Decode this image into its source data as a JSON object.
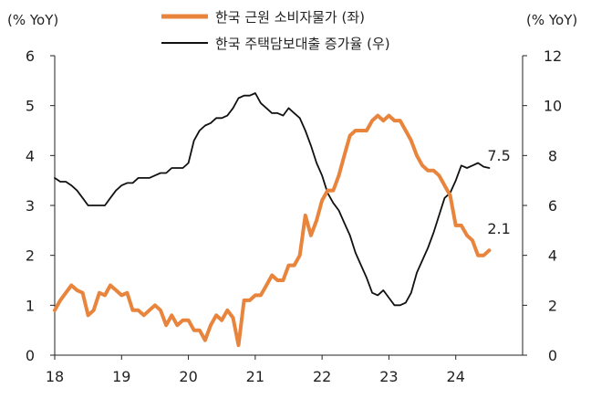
{
  "chart_data": {
    "type": "line",
    "left_unit": "(% YoY)",
    "right_unit": "(% YoY)",
    "left_ylim": [
      0,
      6
    ],
    "left_ticks": [
      "0",
      "1",
      "2",
      "3",
      "4",
      "5",
      "6"
    ],
    "right_ylim": [
      0,
      12
    ],
    "right_ticks": [
      "0",
      "2",
      "4",
      "6",
      "8",
      "10",
      "12"
    ],
    "xlim": [
      2018.0,
      2025.0
    ],
    "x_ticks": [
      {
        "value": 2018,
        "label": "18"
      },
      {
        "value": 2019,
        "label": "19"
      },
      {
        "value": 2020,
        "label": "20"
      },
      {
        "value": 2021,
        "label": "21"
      },
      {
        "value": 2022,
        "label": "22"
      },
      {
        "value": 2023,
        "label": "23"
      },
      {
        "value": 2024,
        "label": "24"
      }
    ],
    "grid": false,
    "legend_position": "top-center",
    "series": [
      {
        "name": "한국 근원 소비자물가 (좌)",
        "axis": "left",
        "color": "#E8843C",
        "end_label": "2.1",
        "points": [
          [
            2018.0,
            0.9
          ],
          [
            2018.083,
            1.1
          ],
          [
            2018.167,
            1.25
          ],
          [
            2018.25,
            1.4
          ],
          [
            2018.333,
            1.3
          ],
          [
            2018.417,
            1.25
          ],
          [
            2018.5,
            0.8
          ],
          [
            2018.583,
            0.9
          ],
          [
            2018.667,
            1.25
          ],
          [
            2018.75,
            1.2
          ],
          [
            2018.833,
            1.4
          ],
          [
            2018.917,
            1.3
          ],
          [
            2019.0,
            1.2
          ],
          [
            2019.083,
            1.25
          ],
          [
            2019.167,
            0.9
          ],
          [
            2019.25,
            0.9
          ],
          [
            2019.333,
            0.8
          ],
          [
            2019.417,
            0.9
          ],
          [
            2019.5,
            1.0
          ],
          [
            2019.583,
            0.9
          ],
          [
            2019.667,
            0.6
          ],
          [
            2019.75,
            0.8
          ],
          [
            2019.833,
            0.6
          ],
          [
            2019.917,
            0.7
          ],
          [
            2020.0,
            0.7
          ],
          [
            2020.083,
            0.5
          ],
          [
            2020.167,
            0.5
          ],
          [
            2020.25,
            0.3
          ],
          [
            2020.333,
            0.6
          ],
          [
            2020.417,
            0.8
          ],
          [
            2020.5,
            0.7
          ],
          [
            2020.583,
            0.9
          ],
          [
            2020.667,
            0.75
          ],
          [
            2020.75,
            0.2
          ],
          [
            2020.833,
            1.1
          ],
          [
            2020.917,
            1.1
          ],
          [
            2021.0,
            1.2
          ],
          [
            2021.083,
            1.2
          ],
          [
            2021.167,
            1.4
          ],
          [
            2021.25,
            1.6
          ],
          [
            2021.333,
            1.5
          ],
          [
            2021.417,
            1.5
          ],
          [
            2021.5,
            1.8
          ],
          [
            2021.583,
            1.8
          ],
          [
            2021.667,
            2.0
          ],
          [
            2021.75,
            2.8
          ],
          [
            2021.833,
            2.4
          ],
          [
            2021.917,
            2.7
          ],
          [
            2022.0,
            3.1
          ],
          [
            2022.083,
            3.3
          ],
          [
            2022.167,
            3.3
          ],
          [
            2022.25,
            3.6
          ],
          [
            2022.333,
            4.0
          ],
          [
            2022.417,
            4.4
          ],
          [
            2022.5,
            4.5
          ],
          [
            2022.583,
            4.5
          ],
          [
            2022.667,
            4.5
          ],
          [
            2022.75,
            4.7
          ],
          [
            2022.833,
            4.8
          ],
          [
            2022.917,
            4.7
          ],
          [
            2023.0,
            4.8
          ],
          [
            2023.083,
            4.7
          ],
          [
            2023.167,
            4.7
          ],
          [
            2023.25,
            4.5
          ],
          [
            2023.333,
            4.3
          ],
          [
            2023.417,
            4.0
          ],
          [
            2023.5,
            3.8
          ],
          [
            2023.583,
            3.7
          ],
          [
            2023.667,
            3.7
          ],
          [
            2023.75,
            3.6
          ],
          [
            2023.833,
            3.4
          ],
          [
            2023.917,
            3.2
          ],
          [
            2024.0,
            2.6
          ],
          [
            2024.083,
            2.6
          ],
          [
            2024.167,
            2.4
          ],
          [
            2024.25,
            2.3
          ],
          [
            2024.333,
            2.0
          ],
          [
            2024.417,
            2.0
          ],
          [
            2024.5,
            2.1
          ]
        ]
      },
      {
        "name": "한국 주택담보대출 증가율 (우)",
        "axis": "right",
        "color": "#111111",
        "end_label": "7.5",
        "points": [
          [
            2018.0,
            7.1
          ],
          [
            2018.083,
            6.95
          ],
          [
            2018.167,
            6.95
          ],
          [
            2018.25,
            6.8
          ],
          [
            2018.333,
            6.6
          ],
          [
            2018.417,
            6.3
          ],
          [
            2018.5,
            6.0
          ],
          [
            2018.583,
            6.0
          ],
          [
            2018.667,
            6.0
          ],
          [
            2018.75,
            6.0
          ],
          [
            2018.833,
            6.3
          ],
          [
            2018.917,
            6.6
          ],
          [
            2019.0,
            6.8
          ],
          [
            2019.083,
            6.9
          ],
          [
            2019.167,
            6.9
          ],
          [
            2019.25,
            7.1
          ],
          [
            2019.333,
            7.1
          ],
          [
            2019.417,
            7.1
          ],
          [
            2019.5,
            7.2
          ],
          [
            2019.583,
            7.3
          ],
          [
            2019.667,
            7.3
          ],
          [
            2019.75,
            7.5
          ],
          [
            2019.833,
            7.5
          ],
          [
            2019.917,
            7.5
          ],
          [
            2020.0,
            7.7
          ],
          [
            2020.083,
            8.6
          ],
          [
            2020.167,
            9.0
          ],
          [
            2020.25,
            9.2
          ],
          [
            2020.333,
            9.3
          ],
          [
            2020.417,
            9.5
          ],
          [
            2020.5,
            9.5
          ],
          [
            2020.583,
            9.6
          ],
          [
            2020.667,
            9.9
          ],
          [
            2020.75,
            10.3
          ],
          [
            2020.833,
            10.4
          ],
          [
            2020.917,
            10.4
          ],
          [
            2021.0,
            10.5
          ],
          [
            2021.083,
            10.1
          ],
          [
            2021.167,
            9.9
          ],
          [
            2021.25,
            9.7
          ],
          [
            2021.333,
            9.7
          ],
          [
            2021.417,
            9.6
          ],
          [
            2021.5,
            9.9
          ],
          [
            2021.583,
            9.7
          ],
          [
            2021.667,
            9.5
          ],
          [
            2021.75,
            9.0
          ],
          [
            2021.833,
            8.4
          ],
          [
            2021.917,
            7.7
          ],
          [
            2022.0,
            7.2
          ],
          [
            2022.083,
            6.5
          ],
          [
            2022.167,
            6.1
          ],
          [
            2022.25,
            5.8
          ],
          [
            2022.333,
            5.3
          ],
          [
            2022.417,
            4.8
          ],
          [
            2022.5,
            4.1
          ],
          [
            2022.583,
            3.6
          ],
          [
            2022.667,
            3.1
          ],
          [
            2022.75,
            2.5
          ],
          [
            2022.833,
            2.4
          ],
          [
            2022.917,
            2.6
          ],
          [
            2023.0,
            2.3
          ],
          [
            2023.083,
            2.0
          ],
          [
            2023.167,
            2.0
          ],
          [
            2023.25,
            2.1
          ],
          [
            2023.333,
            2.5
          ],
          [
            2023.417,
            3.3
          ],
          [
            2023.5,
            3.8
          ],
          [
            2023.583,
            4.3
          ],
          [
            2023.667,
            4.9
          ],
          [
            2023.75,
            5.6
          ],
          [
            2023.833,
            6.3
          ],
          [
            2023.917,
            6.5
          ],
          [
            2024.0,
            7.0
          ],
          [
            2024.083,
            7.6
          ],
          [
            2024.167,
            7.5
          ],
          [
            2024.25,
            7.6
          ],
          [
            2024.333,
            7.7
          ],
          [
            2024.417,
            7.55
          ],
          [
            2024.5,
            7.5
          ]
        ]
      }
    ]
  }
}
